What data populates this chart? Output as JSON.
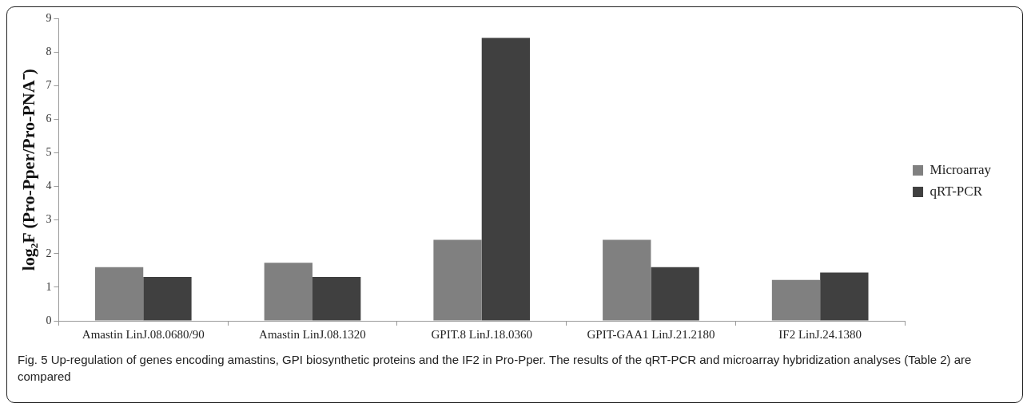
{
  "chart_data": {
    "type": "bar",
    "ylabel": "log₂F (Pro-Pper/Pro-PNA⁻)",
    "categories": [
      "Amastin LinJ.08.0680/90",
      "Amastin LinJ.08.1320",
      "GPIT.8 LinJ.18.0360",
      "GPIT-GAA1 LinJ.21.2180",
      "IF2 LinJ.24.1380"
    ],
    "series": [
      {
        "name": "Microarray",
        "color": "#808080",
        "values": [
          1.6,
          1.73,
          2.41,
          2.41,
          1.22
        ]
      },
      {
        "name": "qRT-PCR",
        "color": "#404040",
        "values": [
          1.31,
          1.31,
          8.43,
          1.6,
          1.44
        ]
      }
    ],
    "ylim": [
      0,
      9
    ],
    "yticks": [
      0,
      1,
      2,
      3,
      4,
      5,
      6,
      7,
      8,
      9
    ],
    "grid": false,
    "legend": "right",
    "annotations": [
      "Fig. 5 Up-regulation of genes encoding amastins, GPI biosynthetic proteins and the IF2 in Pro-Pper. The results of the qRT-PCR and microarray hybridization analyses (Table 2) are compared"
    ]
  }
}
